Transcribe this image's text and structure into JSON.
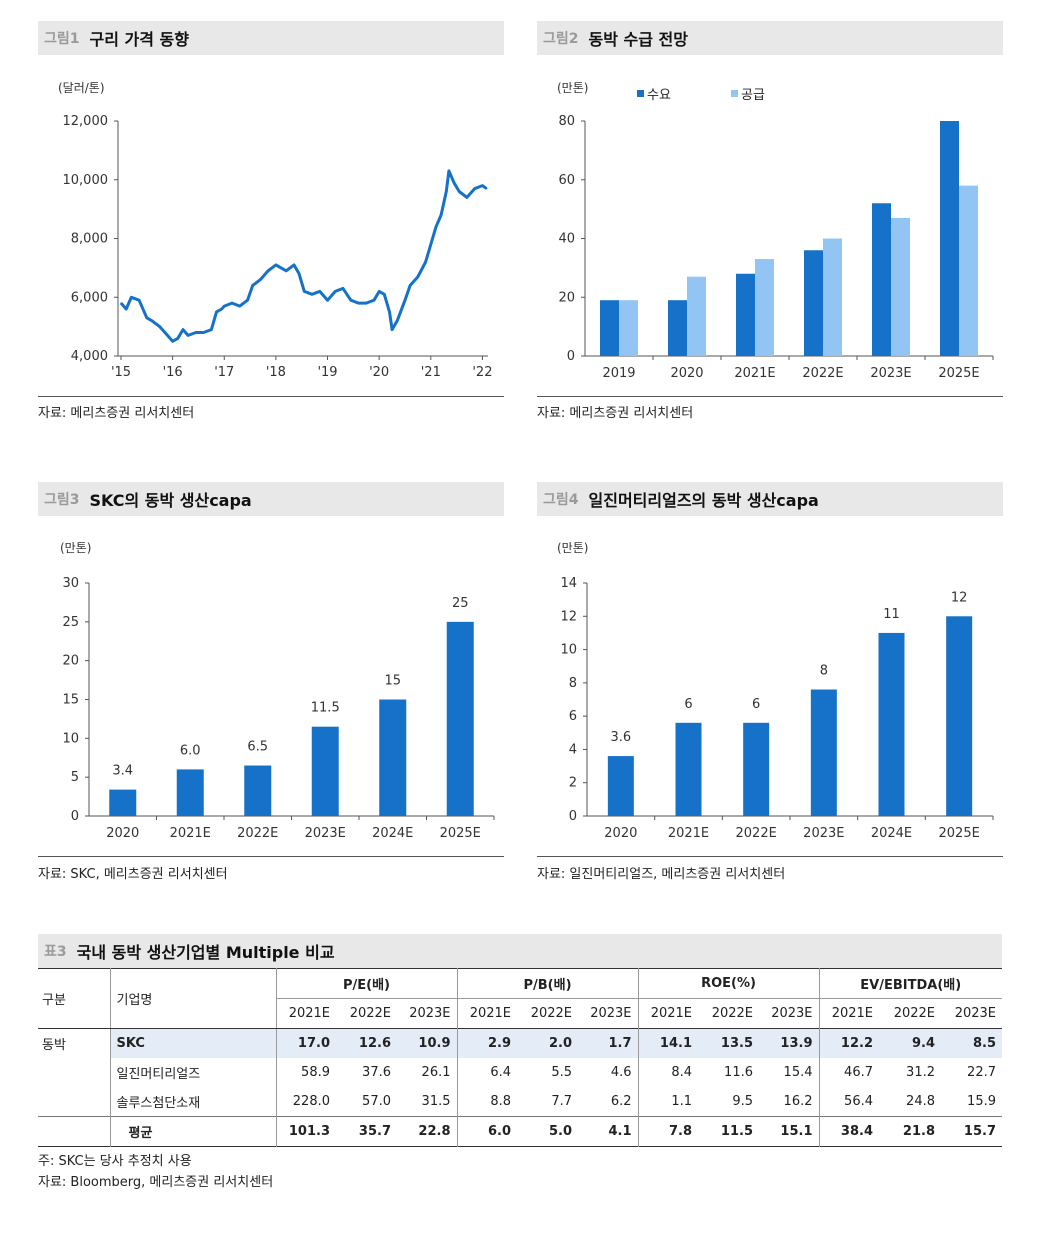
{
  "figures": [
    {
      "num": "그림1",
      "title": "구리 가격 동향",
      "source": "자료: 메리츠증권 리서치센터",
      "unit": "(달러/톤)"
    },
    {
      "num": "그림2",
      "title": "동박 수급 전망",
      "source": "자료: 메리츠증권 리서치센터",
      "unit": "(만톤)"
    },
    {
      "num": "그림3",
      "title": "SKC의 동박 생산capa",
      "source": "자료: SKC, 메리츠증권 리서치센터",
      "unit": "(만톤)"
    },
    {
      "num": "그림4",
      "title": "일진머티리얼즈의 동박 생산capa",
      "source": "자료: 일진머티리얼즈, 메리츠증권 리서치센터",
      "unit": "(만톤)"
    }
  ],
  "colors": {
    "dark_blue": "#1672c9",
    "light_blue": "#92c5f3",
    "highlight_row": "#e4edf7"
  },
  "chart_data": [
    {
      "type": "line",
      "title": "구리 가격 동향",
      "ylabel": "(달러/톤)",
      "ylim": [
        4000,
        12000
      ],
      "yticks": [
        "4,000",
        "6,000",
        "8,000",
        "10,000",
        "12,000"
      ],
      "xticks": [
        "'15",
        "'16",
        "'17",
        "'18",
        "'19",
        "'20",
        "'21",
        "'22"
      ],
      "x": [
        2015.0,
        2015.1,
        2015.2,
        2015.35,
        2015.5,
        2015.6,
        2015.75,
        2015.9,
        2016.0,
        2016.1,
        2016.2,
        2016.3,
        2016.45,
        2016.6,
        2016.75,
        2016.85,
        2016.95,
        2017.0,
        2017.15,
        2017.3,
        2017.45,
        2017.55,
        2017.7,
        2017.85,
        2018.0,
        2018.1,
        2018.2,
        2018.35,
        2018.45,
        2018.55,
        2018.7,
        2018.85,
        2019.0,
        2019.15,
        2019.3,
        2019.45,
        2019.6,
        2019.75,
        2019.9,
        2020.0,
        2020.1,
        2020.2,
        2020.25,
        2020.35,
        2020.5,
        2020.6,
        2020.75,
        2020.9,
        2021.0,
        2021.1,
        2021.2,
        2021.3,
        2021.35,
        2021.45,
        2021.55,
        2021.7,
        2021.85,
        2022.0,
        2022.08
      ],
      "series": [
        {
          "name": "",
          "values": [
            5800,
            5600,
            6000,
            5900,
            5300,
            5200,
            5000,
            4700,
            4500,
            4600,
            4900,
            4700,
            4800,
            4800,
            4900,
            5500,
            5600,
            5700,
            5800,
            5700,
            5900,
            6400,
            6600,
            6900,
            7100,
            7000,
            6900,
            7100,
            6800,
            6200,
            6100,
            6200,
            5900,
            6200,
            6300,
            5900,
            5800,
            5800,
            5900,
            6200,
            6100,
            5500,
            4900,
            5200,
            5900,
            6400,
            6700,
            7200,
            7800,
            8400,
            8800,
            9600,
            10300,
            9900,
            9600,
            9400,
            9700,
            9800,
            9700
          ]
        }
      ]
    },
    {
      "type": "bar",
      "title": "동박 수급 전망",
      "ylabel": "(만톤)",
      "ylim": [
        0,
        80
      ],
      "yticks": [
        "0",
        "20",
        "40",
        "60",
        "80"
      ],
      "categories": [
        "2019",
        "2020",
        "2021E",
        "2022E",
        "2023E",
        "2025E"
      ],
      "series": [
        {
          "name": "수요",
          "values": [
            19,
            19,
            28,
            36,
            52,
            80
          ]
        },
        {
          "name": "공급",
          "values": [
            19,
            27,
            33,
            40,
            47,
            58
          ]
        }
      ]
    },
    {
      "type": "bar",
      "title": "SKC의 동박 생산capa",
      "ylabel": "(만톤)",
      "ylim": [
        0,
        30
      ],
      "yticks": [
        "0",
        "5",
        "10",
        "15",
        "20",
        "25",
        "30"
      ],
      "categories": [
        "2020",
        "2021E",
        "2022E",
        "2023E",
        "2024E",
        "2025E"
      ],
      "values": [
        3.4,
        6.0,
        6.5,
        11.5,
        15,
        25
      ],
      "data_labels": [
        "3.4",
        "6.0",
        "6.5",
        "11.5",
        "15",
        "25"
      ]
    },
    {
      "type": "bar",
      "title": "일진머티리얼즈의 동박 생산capa",
      "ylabel": "(만톤)",
      "ylim": [
        0,
        14
      ],
      "yticks": [
        "0",
        "2",
        "4",
        "6",
        "8",
        "10",
        "12",
        "14"
      ],
      "categories": [
        "2020",
        "2021E",
        "2022E",
        "2023E",
        "2024E",
        "2025E"
      ],
      "values": [
        3.6,
        5.6,
        5.6,
        7.6,
        11,
        12
      ],
      "data_labels": [
        "3.6",
        "6",
        "6",
        "8",
        "11",
        "12"
      ]
    }
  ],
  "table": {
    "num": "표3",
    "title": "국내 동박 생산기업별 Multiple 비교",
    "col_group": "구분",
    "col_company": "기업명",
    "groups": [
      "P/E(배)",
      "P/B(배)",
      "ROE(%)",
      "EV/EBITDA(배)"
    ],
    "years": [
      "2021E",
      "2022E",
      "2023E"
    ],
    "segment": "동박",
    "rows": [
      {
        "name": "SKC",
        "values": [
          "17.0",
          "12.6",
          "10.9",
          "2.9",
          "2.0",
          "1.7",
          "14.1",
          "13.5",
          "13.9",
          "12.2",
          "9.4",
          "8.5"
        ]
      },
      {
        "name": "일진머티리얼즈",
        "values": [
          "58.9",
          "37.6",
          "26.1",
          "6.4",
          "5.5",
          "4.6",
          "8.4",
          "11.6",
          "15.4",
          "46.7",
          "31.2",
          "22.7"
        ]
      },
      {
        "name": "솔루스첨단소재",
        "values": [
          "228.0",
          "57.0",
          "31.5",
          "8.8",
          "7.7",
          "6.2",
          "1.1",
          "9.5",
          "16.2",
          "56.4",
          "24.8",
          "15.9"
        ]
      },
      {
        "name": "평균",
        "values": [
          "101.3",
          "35.7",
          "22.8",
          "6.0",
          "5.0",
          "4.1",
          "7.8",
          "11.5",
          "15.1",
          "38.4",
          "21.8",
          "15.7"
        ]
      }
    ],
    "note": "주: SKC는 당사 추정치 사용",
    "source": "자료: Bloomberg, 메리츠증권 리서치센터"
  }
}
